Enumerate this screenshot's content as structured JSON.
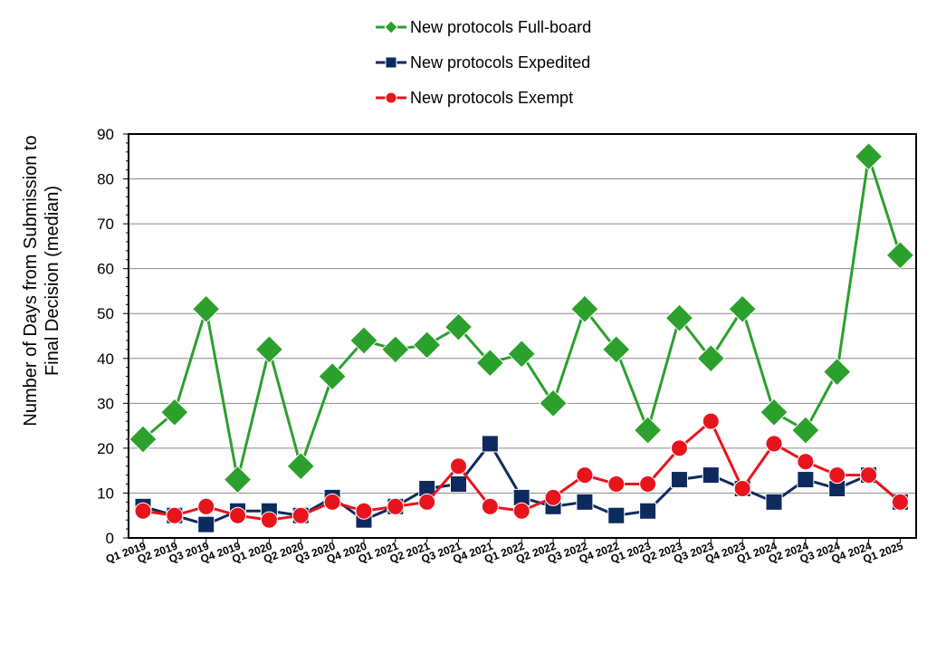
{
  "chart_data": {
    "type": "line",
    "title": "",
    "xlabel": "",
    "ylabel": "Number of Days from Submission to Final Decision (median)",
    "ylabel_lines": [
      "Number of Days from Submission to",
      "Final Decision (median)"
    ],
    "ylim": [
      0,
      90
    ],
    "yticks": [
      0,
      10,
      20,
      30,
      40,
      50,
      60,
      70,
      80,
      90
    ],
    "grid": true,
    "legend_position": "top-center",
    "categories": [
      "Q1 2019",
      "Q2 2019",
      "Q3 2019",
      "Q4 2019",
      "Q1 2020",
      "Q2 2020",
      "Q3 2020",
      "Q4 2020",
      "Q1 2021",
      "Q2 2021",
      "Q3 2021",
      "Q4 2021",
      "Q1 2022",
      "Q2 2022",
      "Q3 2022",
      "Q4 2022",
      "Q1 2023",
      "Q2 2023",
      "Q3 2023",
      "Q4 2023",
      "Q1 2024",
      "Q2 2024",
      "Q3 2024",
      "Q4 2024",
      "Q1 2025"
    ],
    "series": [
      {
        "name": "New protocols Full-board",
        "color": "#2ca02c",
        "marker": "diamond",
        "values": [
          22,
          28,
          51,
          13,
          42,
          16,
          36,
          44,
          42,
          43,
          47,
          39,
          41,
          30,
          51,
          42,
          24,
          49,
          40,
          51,
          28,
          24,
          37,
          85,
          63
        ]
      },
      {
        "name": "New protocols Expedited",
        "color": "#0d2a5e",
        "marker": "square",
        "values": [
          7,
          5,
          3,
          6,
          6,
          5,
          9,
          4,
          7,
          11,
          12,
          21,
          9,
          7,
          8,
          5,
          6,
          13,
          14,
          11,
          8,
          13,
          11,
          14,
          8
        ]
      },
      {
        "name": "New protocols Exempt",
        "color": "#e8141c",
        "marker": "circle",
        "values": [
          6,
          5,
          7,
          5,
          4,
          5,
          8,
          6,
          7,
          8,
          16,
          7,
          6,
          9,
          14,
          12,
          12,
          20,
          26,
          11,
          21,
          17,
          14,
          14,
          8
        ]
      }
    ]
  }
}
